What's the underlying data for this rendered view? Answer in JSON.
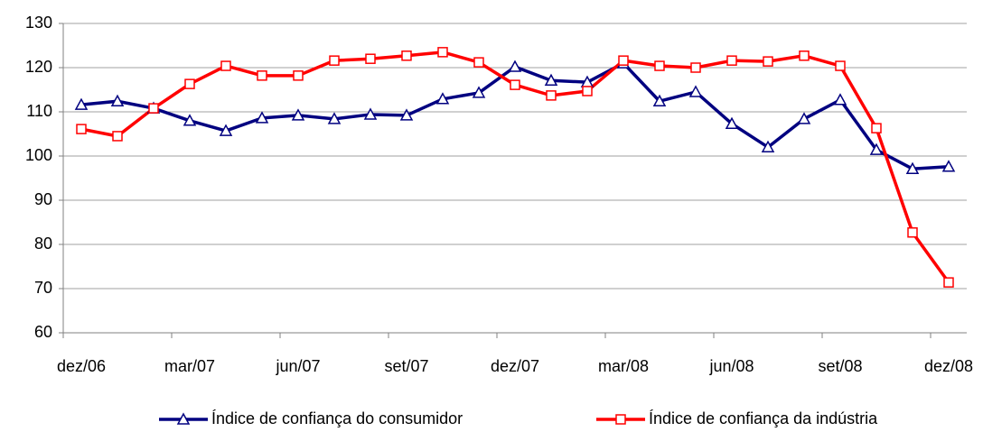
{
  "chart_data": {
    "type": "line",
    "categories": [
      "dez/06",
      null,
      null,
      "mar/07",
      null,
      null,
      "jun/07",
      null,
      null,
      "set/07",
      null,
      null,
      "dez/07",
      null,
      null,
      "mar/08",
      null,
      null,
      "jun/08",
      null,
      null,
      "set/08",
      null,
      null,
      "dez/08"
    ],
    "series": [
      {
        "name": "Índice de confiança do consumidor",
        "color": "#000080",
        "marker": "triangle",
        "values": [
          111.6,
          112.4,
          110.8,
          108.0,
          105.7,
          108.6,
          109.2,
          108.4,
          109.4,
          109.2,
          112.9,
          114.3,
          120.2,
          117.1,
          116.7,
          121.0,
          112.4,
          114.5,
          107.3,
          102.0,
          108.4,
          112.7,
          101.4,
          97.1,
          97.6
        ]
      },
      {
        "name": "Índice de confiança da indústria",
        "color": "#ff0000",
        "marker": "square",
        "values": [
          106.1,
          104.5,
          110.8,
          116.3,
          120.4,
          118.2,
          118.2,
          121.6,
          122.0,
          122.7,
          123.5,
          121.2,
          116.1,
          113.7,
          114.7,
          121.6,
          120.4,
          120.0,
          121.6,
          121.4,
          122.7,
          120.4,
          106.3,
          82.7,
          71.4
        ]
      }
    ],
    "ylim": [
      60,
      130
    ],
    "yticks": [
      60,
      70,
      80,
      90,
      100,
      110,
      120,
      130
    ],
    "grid": true,
    "legend": "bottom"
  }
}
